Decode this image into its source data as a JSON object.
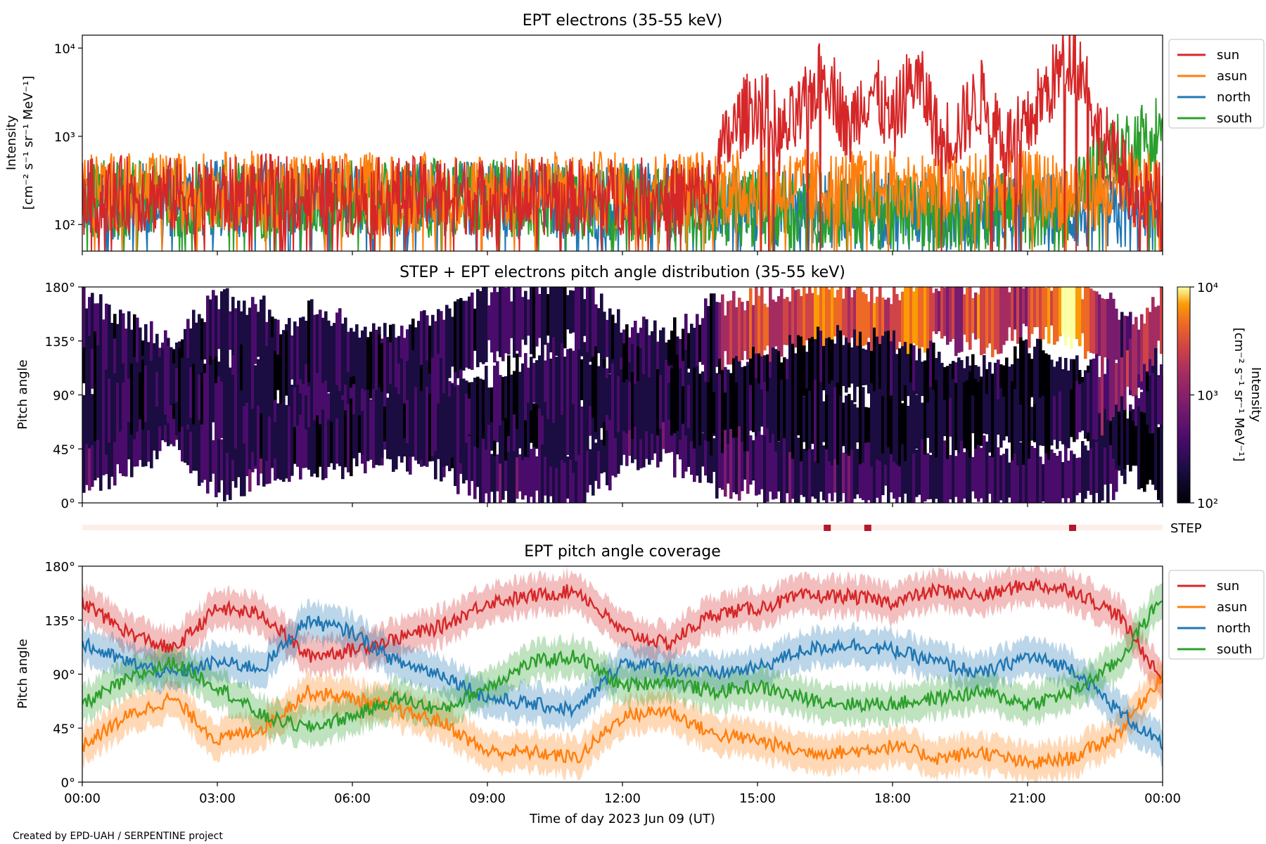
{
  "credit": "Created by EPD-UAH / SERPENTINE project",
  "xlabel": "Time of day 2023 Jun 09 (UT)",
  "x_ticks": [
    "00:00",
    "03:00",
    "06:00",
    "09:00",
    "12:00",
    "15:00",
    "18:00",
    "21:00",
    "00:00"
  ],
  "series_colors": {
    "sun": "#d62728",
    "asun": "#ff7f0e",
    "north": "#1f77b4",
    "south": "#2ca02c"
  },
  "chart_data": [
    {
      "id": "intensity",
      "type": "line",
      "title": "EPT electrons (35-55 keV)",
      "ylabel_line1": "Intensity",
      "ylabel_line2": "[cm⁻² s⁻¹ sr⁻¹ MeV⁻¹]",
      "yscale": "log",
      "ylim": [
        50,
        14000
      ],
      "y_ticks": [
        100,
        1000,
        10000
      ],
      "y_tick_labels": [
        "10²",
        "10³",
        "10⁴"
      ],
      "xlim_hours": [
        0,
        24
      ],
      "legend_position": "outside-right-top",
      "series": [
        {
          "name": "sun",
          "color": "#d62728",
          "x": [
            0,
            1,
            2,
            3,
            4,
            5,
            6,
            7,
            8,
            9,
            10,
            11,
            12,
            13,
            14,
            14.5,
            15,
            15.5,
            16,
            16.5,
            17,
            17.5,
            18,
            18.5,
            19,
            19.5,
            20,
            20.5,
            21,
            21.5,
            22,
            22.5,
            23,
            23.5,
            24
          ],
          "y": [
            200,
            220,
            210,
            200,
            230,
            210,
            200,
            210,
            220,
            200,
            210,
            200,
            210,
            200,
            220,
            1200,
            2500,
            900,
            1800,
            5000,
            900,
            3500,
            1100,
            4500,
            900,
            1200,
            2800,
            800,
            1200,
            3500,
            8500,
            1200,
            450,
            200,
            180
          ]
        },
        {
          "name": "asun",
          "color": "#ff7f0e",
          "x": [
            0,
            2,
            4,
            6,
            8,
            10,
            12,
            14,
            16,
            18,
            20,
            22,
            24
          ],
          "y": [
            240,
            230,
            250,
            240,
            230,
            250,
            240,
            260,
            260,
            250,
            250,
            240,
            230
          ]
        },
        {
          "name": "north",
          "color": "#1f77b4",
          "x": [
            0,
            2,
            4,
            6,
            8,
            10,
            12,
            14,
            16,
            18,
            20,
            22,
            24
          ],
          "y": [
            180,
            190,
            200,
            190,
            200,
            190,
            180,
            170,
            150,
            140,
            150,
            140,
            120
          ]
        },
        {
          "name": "south",
          "color": "#2ca02c",
          "x": [
            0,
            2,
            4,
            6,
            8,
            10,
            12,
            14,
            16,
            18,
            20,
            22,
            23.5,
            24
          ],
          "y": [
            190,
            200,
            180,
            190,
            200,
            190,
            180,
            160,
            150,
            140,
            140,
            150,
            900,
            1300
          ]
        }
      ]
    },
    {
      "id": "pad",
      "type": "heatmap",
      "title": "STEP + EPT electrons pitch angle distribution (35-55 keV)",
      "ylabel": "Pitch angle",
      "y_ticks": [
        "0°",
        "45°",
        "90°",
        "135°",
        "180°"
      ],
      "ylim": [
        0,
        180
      ],
      "colorbar": {
        "label_line1": "Intensity",
        "label_line2": "[cm⁻² s⁻¹ sr⁻¹ MeV⁻¹]",
        "scale": "log",
        "range": [
          100,
          10000
        ],
        "tick_labels": [
          "10²",
          "10³",
          "10⁴"
        ],
        "colormap": "inferno"
      },
      "step_label": "STEP",
      "step_markers_hours": [
        16.55,
        17.45,
        22.0
      ]
    },
    {
      "id": "coverage",
      "type": "line",
      "title": "EPT pitch angle coverage",
      "ylabel": "Pitch angle",
      "y_ticks": [
        "0°",
        "45°",
        "90°",
        "135°",
        "180°"
      ],
      "ylim": [
        0,
        180
      ],
      "xlim_hours": [
        0,
        24
      ],
      "legend_position": "outside-right-top",
      "series": [
        {
          "name": "sun",
          "color": "#d62728",
          "x": [
            0,
            1,
            2,
            3,
            4,
            5,
            6,
            7,
            8,
            9,
            10,
            11,
            12,
            13,
            14,
            15,
            16,
            17,
            18,
            19,
            20,
            21,
            22,
            23,
            24
          ],
          "y": [
            150,
            125,
            110,
            145,
            140,
            105,
            110,
            120,
            130,
            150,
            155,
            160,
            125,
            115,
            140,
            145,
            155,
            155,
            150,
            160,
            155,
            165,
            160,
            140,
            85
          ]
        },
        {
          "name": "asun",
          "color": "#ff7f0e",
          "x": [
            0,
            1,
            2,
            3,
            4,
            5,
            6,
            7,
            8,
            9,
            10,
            11,
            12,
            13,
            14,
            15,
            16,
            17,
            18,
            19,
            20,
            21,
            22,
            23,
            24
          ],
          "y": [
            30,
            55,
            70,
            35,
            45,
            75,
            70,
            60,
            50,
            25,
            25,
            20,
            55,
            60,
            40,
            35,
            25,
            25,
            30,
            20,
            25,
            15,
            20,
            40,
            90
          ]
        },
        {
          "name": "north",
          "color": "#1f77b4",
          "x": [
            0,
            1,
            2,
            3,
            4,
            5,
            6,
            7,
            8,
            9,
            10,
            11,
            12,
            13,
            14,
            15,
            16,
            17,
            18,
            19,
            20,
            21,
            22,
            23,
            24
          ],
          "y": [
            115,
            100,
            90,
            100,
            95,
            135,
            125,
            100,
            90,
            70,
            65,
            60,
            100,
            95,
            90,
            95,
            110,
            115,
            110,
            100,
            90,
            105,
            95,
            60,
            30
          ]
        },
        {
          "name": "south",
          "color": "#2ca02c",
          "x": [
            0,
            1,
            2,
            3,
            4,
            5,
            6,
            7,
            8,
            9,
            10,
            11,
            12,
            13,
            14,
            15,
            16,
            17,
            18,
            19,
            20,
            21,
            22,
            23,
            24
          ],
          "y": [
            65,
            85,
            100,
            80,
            55,
            45,
            55,
            70,
            60,
            80,
            100,
            105,
            80,
            85,
            75,
            80,
            70,
            65,
            65,
            70,
            75,
            65,
            75,
            100,
            155
          ]
        }
      ]
    }
  ]
}
